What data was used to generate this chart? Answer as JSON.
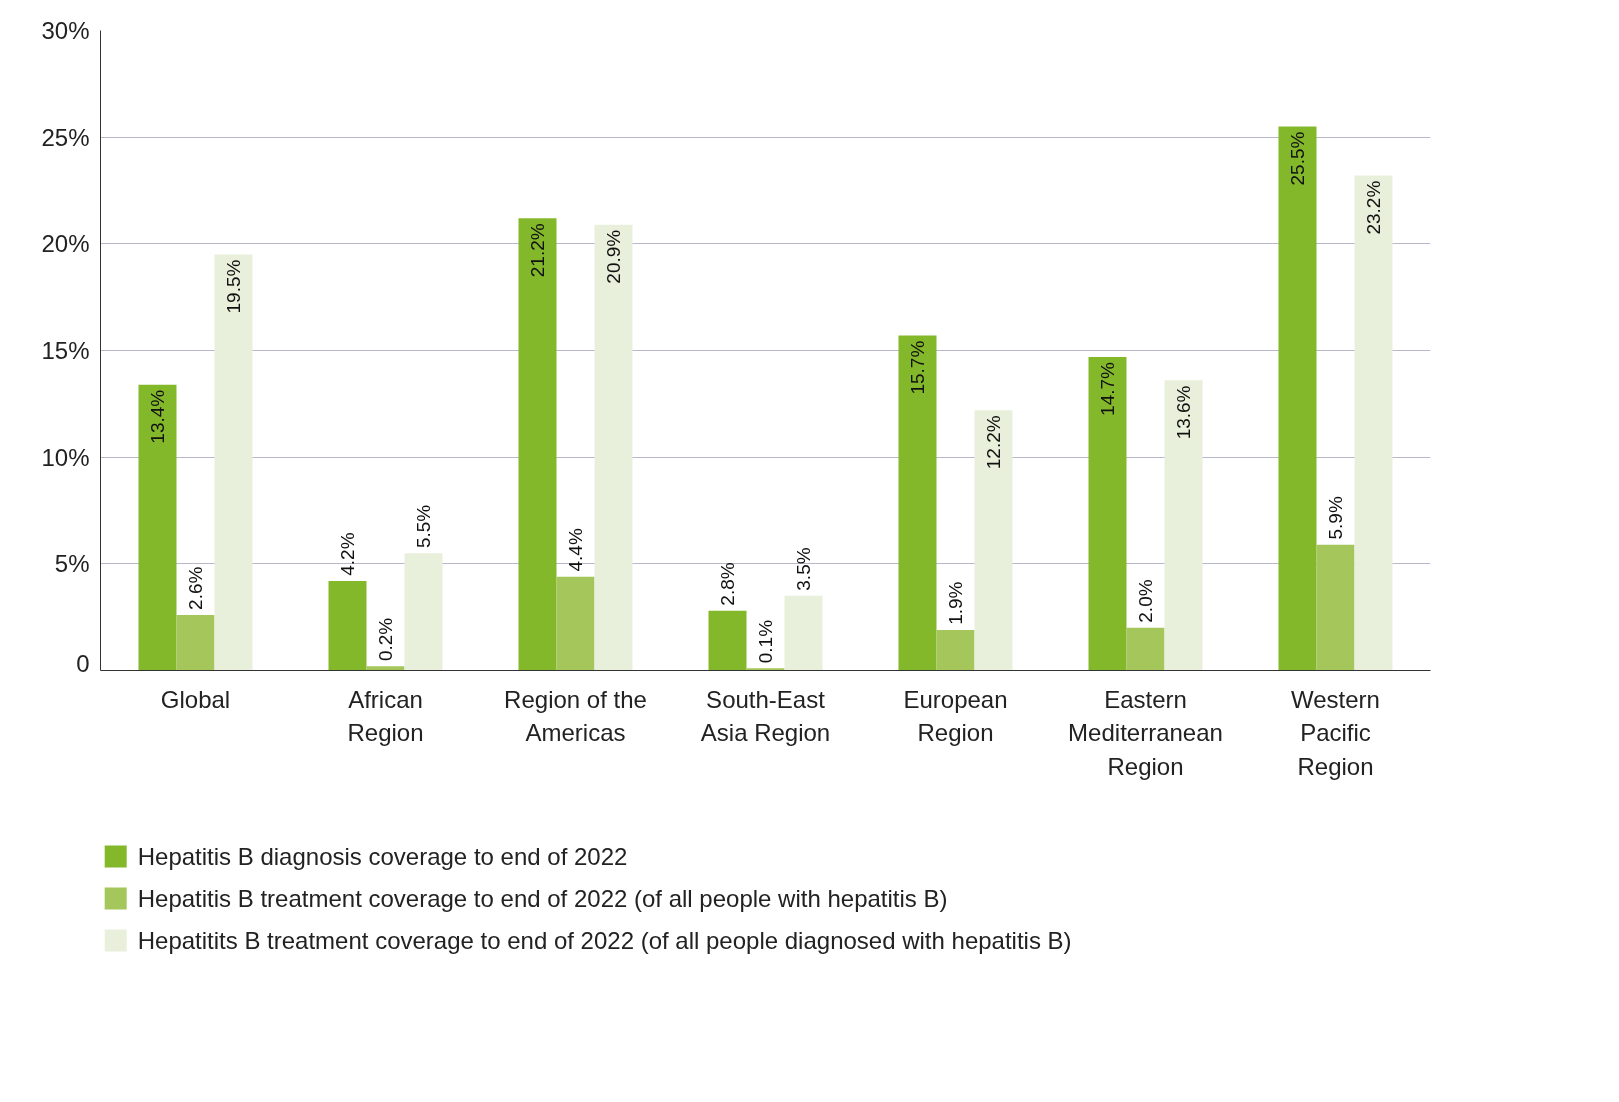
{
  "chart_data": {
    "type": "bar",
    "categories": [
      "Global",
      "African Region",
      "Region of the Americas",
      "South-East Asia Region",
      "European Region",
      "Eastern Mediterranean Region",
      "Western Pacific Region"
    ],
    "series": [
      {
        "name": "Hepatitis B diagnosis coverage to end of 2022",
        "color": "#84b82b",
        "values": [
          13.4,
          4.2,
          21.2,
          2.8,
          15.7,
          14.7,
          25.5
        ],
        "value_labels": [
          "13.4%",
          "4.2%",
          "21.2%",
          "2.8%",
          "15.7%",
          "14.7%",
          "25.5%"
        ]
      },
      {
        "name": "Hepatitis B treatment coverage to end of 2022 (of all people with hepatitis B)",
        "color": "#a4c65a",
        "values": [
          2.6,
          0.2,
          4.4,
          0.1,
          1.9,
          2.0,
          5.9
        ],
        "value_labels": [
          "2.6%",
          "0.2%",
          "4.4%",
          "0.1%",
          "1.9%",
          "2.0%",
          "5.9%"
        ]
      },
      {
        "name": "Hepatitits B treatment coverage to end of 2022 (of all people diagnosed with hepatitis B)",
        "color": "#e8efdb",
        "values": [
          19.5,
          5.5,
          20.9,
          3.5,
          12.2,
          13.6,
          23.2
        ],
        "value_labels": [
          "19.5%",
          "5.5%",
          "20.9%",
          "3.5%",
          "12.2%",
          "13.6%",
          "23.2%"
        ]
      }
    ],
    "ylim": [
      0,
      30
    ],
    "yticks": [
      0,
      {
        "value": 5,
        "label": "5%"
      },
      {
        "value": 10,
        "label": "10%"
      },
      {
        "value": 15,
        "label": "15%"
      },
      {
        "value": 20,
        "label": "20%"
      },
      {
        "value": 25,
        "label": "25%"
      },
      {
        "value": 30,
        "label": "30%"
      }
    ],
    "grid": "y",
    "legend": "bottom"
  }
}
